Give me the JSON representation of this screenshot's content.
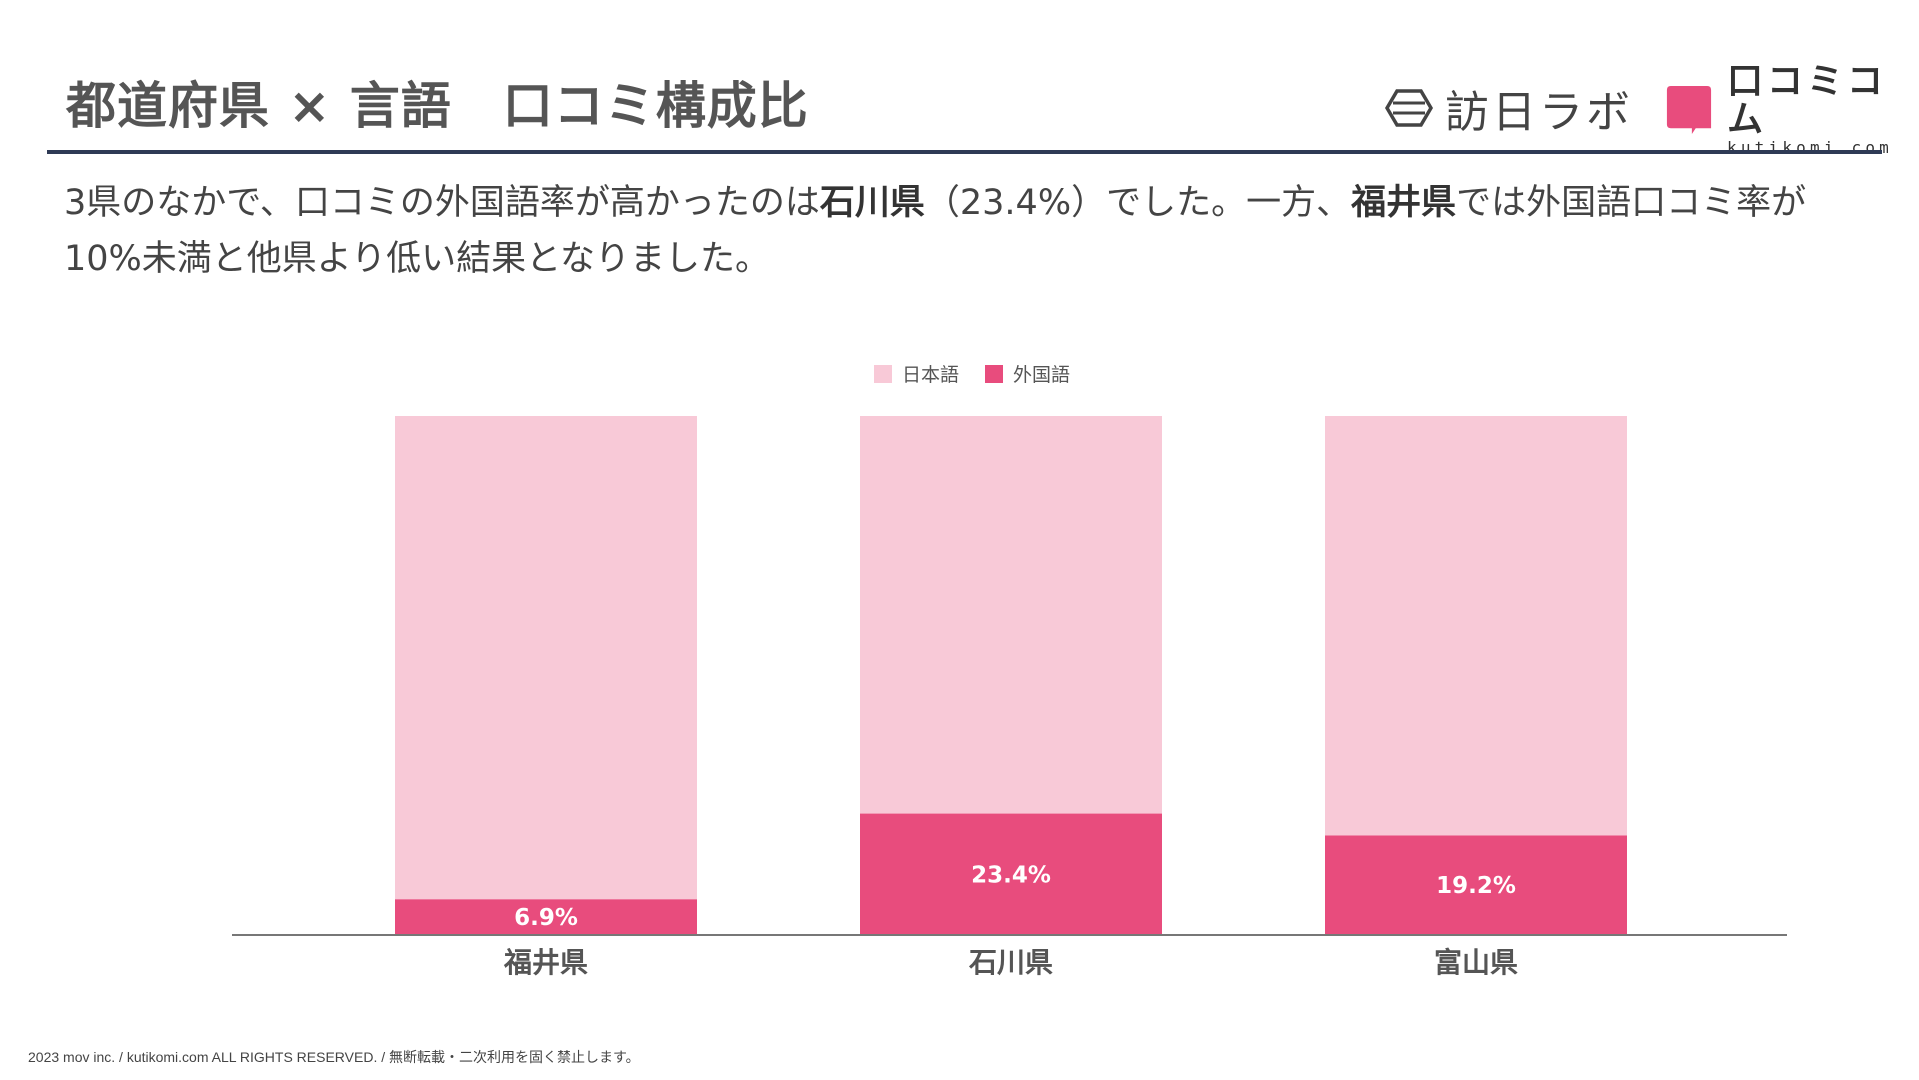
{
  "header": {
    "title": "都道府県 × 言語　口コミ構成比",
    "logo_houjin": "訪日ラボ",
    "logo_kuchikomi": "口コミコム",
    "logo_kuchikomi_en": "kutikomi com"
  },
  "description": {
    "p1": "3県のなかで、口コミの外国語率が高かったのは",
    "b1": "石川県",
    "p2": "（23.4%）でした。一方、",
    "b2": "福井県",
    "p3": "では外国語口コミ率が",
    "p4": "10%未満と他県より低い結果となりました。"
  },
  "colors": {
    "japanese": "#f8c9d7",
    "foreign": "#e84c7d",
    "axis": "#777777"
  },
  "chart_data": {
    "type": "bar",
    "stacked": true,
    "percent": true,
    "categories": [
      "福井県",
      "石川県",
      "富山県"
    ],
    "series": [
      {
        "name": "日本語",
        "values": [
          93.1,
          76.6,
          80.8
        ]
      },
      {
        "name": "外国語",
        "values": [
          6.9,
          23.4,
          19.2
        ]
      }
    ],
    "data_labels": [
      "6.9%",
      "23.4%",
      "19.2%"
    ],
    "legend_position": "top-center",
    "ylim": [
      0,
      100
    ],
    "grid": false
  },
  "footer": {
    "text": "2023 mov inc. / kutikomi.com ALL RIGHTS RESERVED. / 無断転載・二次利用を固く禁止します。"
  }
}
